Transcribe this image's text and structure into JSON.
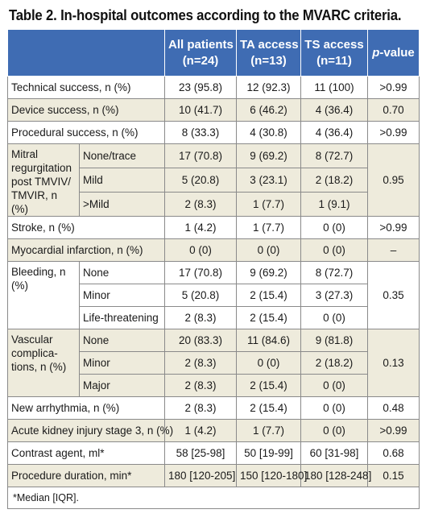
{
  "caption": "Table 2. In-hospital outcomes according to the MVARC criteria.",
  "headers": {
    "blank": "",
    "all": [
      "All patients",
      "(n=24)"
    ],
    "ta": [
      "TA access",
      "(n=13)"
    ],
    "ts": [
      "TS access",
      "(n=11)"
    ],
    "p_italic": "p",
    "p_rest": "-value"
  },
  "rows": {
    "technical": {
      "label": "Technical success, n (%)",
      "all": "23 (95.8)",
      "ta": "12 (92.3)",
      "ts": "11 (100)",
      "p": ">0.99"
    },
    "device": {
      "label": "Device success, n (%)",
      "all": "10 (41.7)",
      "ta": "6 (46.2)",
      "ts": "4 (36.4)",
      "p": "0.70"
    },
    "procedural": {
      "label": "Procedural success, n (%)",
      "all": "8 (33.3)",
      "ta": "4 (30.8)",
      "ts": "4 (36.4)",
      "p": ">0.99"
    },
    "mr": {
      "label": "Mitral regurgitation post TMVIV/ TMVIR, n (%)",
      "p": "0.95",
      "sub": [
        {
          "label": "None/trace",
          "all": "17 (70.8)",
          "ta": "9 (69.2)",
          "ts": "8 (72.7)"
        },
        {
          "label": "Mild",
          "all": "5 (20.8)",
          "ta": "3 (23.1)",
          "ts": "2 (18.2)"
        },
        {
          "label": ">Mild",
          "all": "2 (8.3)",
          "ta": "1 (7.7)",
          "ts": "1 (9.1)"
        }
      ]
    },
    "stroke": {
      "label": "Stroke, n (%)",
      "all": "1 (4.2)",
      "ta": "1 (7.7)",
      "ts": "0 (0)",
      "p": ">0.99"
    },
    "mi": {
      "label": "Myocardial infarction, n (%)",
      "all": "0 (0)",
      "ta": "0 (0)",
      "ts": "0 (0)",
      "p": "–"
    },
    "bleeding": {
      "label": "Bleeding, n (%)",
      "p": "0.35",
      "sub": [
        {
          "label": "None",
          "all": "17 (70.8)",
          "ta": "9 (69.2)",
          "ts": "8 (72.7)"
        },
        {
          "label": "Minor",
          "all": "5 (20.8)",
          "ta": "2 (15.4)",
          "ts": "3 (27.3)"
        },
        {
          "label": "Life-threatening",
          "all": "2 (8.3)",
          "ta": "2 (15.4)",
          "ts": "0 (0)"
        }
      ]
    },
    "vascular": {
      "label": "Vascular complica-tions, n (%)",
      "p": "0.13",
      "sub": [
        {
          "label": "None",
          "all": "20 (83.3)",
          "ta": "11 (84.6)",
          "ts": "9 (81.8)"
        },
        {
          "label": "Minor",
          "all": "2 (8.3)",
          "ta": "0 (0)",
          "ts": "2 (18.2)"
        },
        {
          "label": "Major",
          "all": "2 (8.3)",
          "ta": "2 (15.4)",
          "ts": "0 (0)"
        }
      ]
    },
    "arrhythmia": {
      "label": "New arrhythmia, n (%)",
      "all": "2 (8.3)",
      "ta": "2 (15.4)",
      "ts": "0 (0)",
      "p": "0.48"
    },
    "aki": {
      "label": "Acute kidney injury stage 3, n (%)",
      "all": "1 (4.2)",
      "ta": "1 (7.7)",
      "ts": "0 (0)",
      "p": ">0.99"
    },
    "contrast": {
      "label": "Contrast agent, ml*",
      "all": "58 [25-98]",
      "ta": "50 [19-99]",
      "ts": "60 [31-98]",
      "p": "0.68"
    },
    "duration": {
      "label": "Procedure duration, min*",
      "all": "180 [120-205]",
      "ta": "150 [120-180]",
      "ts": "180 [128-248]",
      "p": "0.15"
    }
  },
  "footnote": "*Median [IQR].",
  "colors": {
    "header_bg": "#3f6cb3",
    "alt_row_bg": "#eeebdc"
  }
}
